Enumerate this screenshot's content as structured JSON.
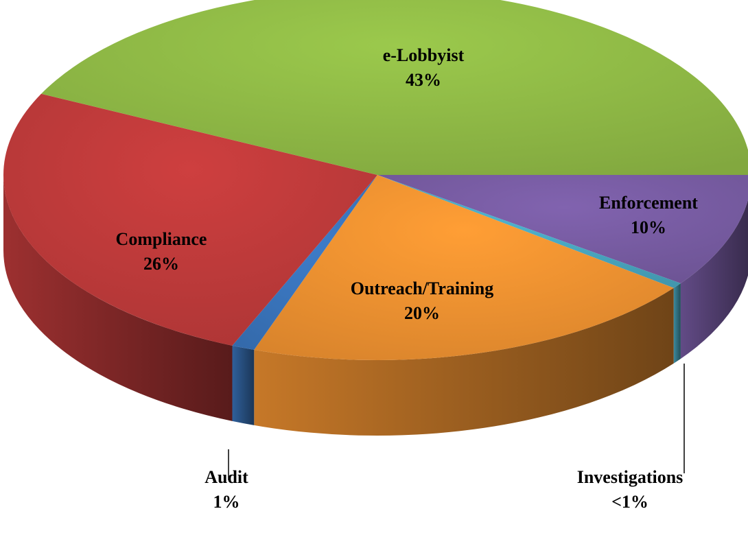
{
  "chart_data": {
    "type": "pie3d",
    "categories": [
      "Enforcement",
      "Investigations",
      "Outreach/Training",
      "Audit",
      "Compliance",
      "e-Lobbyist"
    ],
    "values": [
      10,
      0.5,
      20,
      1,
      26,
      43
    ],
    "value_labels": [
      "10%",
      "<1%",
      "20%",
      "1%",
      "26%",
      "43%"
    ],
    "colors": [
      "#7b5ea7",
      "#4bacc6",
      "#f79632",
      "#3b78c2",
      "#c43c3c",
      "#94bf48"
    ]
  }
}
